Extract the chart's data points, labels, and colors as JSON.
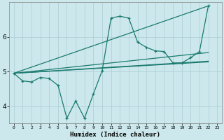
{
  "xlabel": "Humidex (Indice chaleur)",
  "bg_color": "#cce8ec",
  "grid_color": "#aacdd4",
  "line_color": "#1a7a6e",
  "xlim": [
    -0.5,
    23.5
  ],
  "ylim": [
    3.5,
    7.0
  ],
  "yticks": [
    4,
    5,
    6
  ],
  "xticks": [
    0,
    1,
    2,
    3,
    4,
    5,
    6,
    7,
    8,
    9,
    10,
    11,
    12,
    13,
    14,
    15,
    16,
    17,
    18,
    19,
    20,
    21,
    22,
    23
  ],
  "series_markers": [
    4.95,
    4.73,
    4.7,
    4.83,
    4.8,
    4.6,
    3.65,
    4.15,
    3.65,
    4.35,
    5.03,
    6.55,
    6.6,
    6.55,
    5.85,
    5.7,
    5.6,
    5.58,
    5.25,
    5.25,
    5.4,
    5.58,
    6.9
  ],
  "series_line1": [
    [
      0,
      4.95
    ],
    [
      22,
      6.9
    ]
  ],
  "series_line2": [
    [
      0,
      4.95
    ],
    [
      22,
      5.28
    ]
  ],
  "series_line3": [
    [
      0,
      4.95
    ],
    [
      22,
      5.3
    ]
  ]
}
